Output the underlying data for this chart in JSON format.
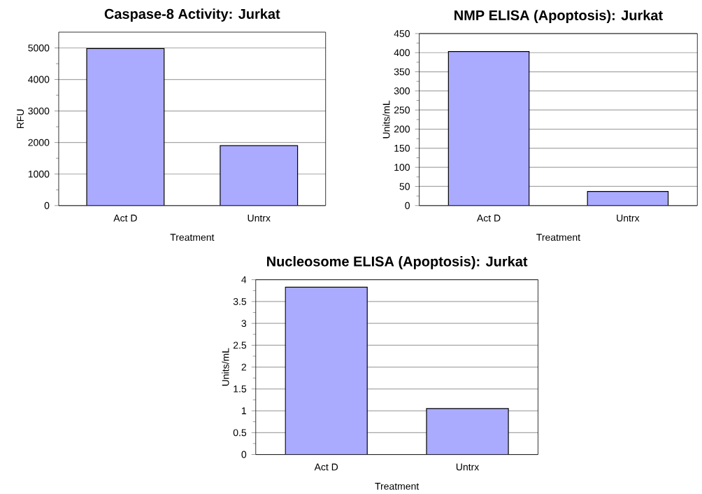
{
  "chart_data": [
    {
      "type": "bar",
      "title": "Caspase-8 Activity: Jurkat",
      "xlabel": "Treatment",
      "ylabel": "RFU",
      "categories": [
        "Act D",
        "Untrx"
      ],
      "values": [
        4980,
        1900
      ],
      "color": "#aaaaff",
      "ylim": [
        0,
        5500
      ],
      "yticks": [
        0,
        1000,
        2000,
        3000,
        4000,
        5000
      ],
      "grid": "y"
    },
    {
      "type": "bar",
      "title": "NMP ELISA (Apoptosis): Jurkat",
      "xlabel": "Treatment",
      "ylabel": "Units/mL",
      "categories": [
        "Act D",
        "Untrx"
      ],
      "values": [
        403,
        37
      ],
      "color": "#aaaaff",
      "ylim": [
        0,
        450
      ],
      "yticks": [
        0,
        50,
        100,
        150,
        200,
        250,
        300,
        350,
        400,
        450
      ],
      "grid": "y"
    },
    {
      "type": "bar",
      "title": "Nucleosome ELISA (Apoptosis): Jurkat",
      "xlabel": "Treatment",
      "ylabel": "Units/mL",
      "categories": [
        "Act D",
        "Untrx"
      ],
      "values": [
        3.83,
        1.05
      ],
      "color": "#aaaaff",
      "ylim": [
        0,
        4
      ],
      "yticks": [
        0,
        0.5,
        1,
        1.5,
        2,
        2.5,
        3,
        3.5,
        4
      ],
      "grid": "y"
    }
  ]
}
